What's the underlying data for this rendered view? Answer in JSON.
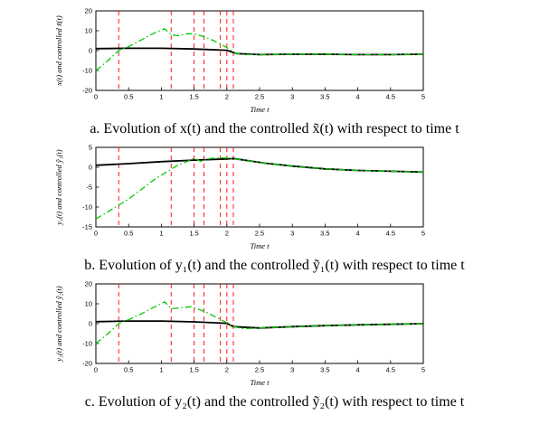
{
  "page": {
    "background": "#ffffff"
  },
  "colors": {
    "original_line": "#000000",
    "controlled_line": "#00cc00",
    "event_lines": "#ff1a1a",
    "axis": "#000000"
  },
  "captions": [
    "a. Evolution of x(t) and the controlled x̃(t) with respect to time t",
    "b. Evolution of y₁(t) and the controlled ỹ₁(t) with respect to time t",
    "c. Evolution of y₂(t) and the controlled ỹ₂(t) with respect to time t"
  ],
  "chart_data": [
    {
      "type": "line",
      "title": "",
      "xlabel": "Time t",
      "ylabel": "x(t) and controlled x̃(t)",
      "xlim": [
        0,
        5
      ],
      "ylim": [
        -20,
        20
      ],
      "xticks": [
        0,
        0.5,
        1,
        1.5,
        2,
        2.5,
        3,
        3.5,
        4,
        4.5,
        5
      ],
      "yticks": [
        -20,
        -10,
        0,
        10,
        20
      ],
      "grid": false,
      "legend": "none",
      "vlines": {
        "x": [
          0.35,
          1.15,
          1.5,
          1.65,
          1.9,
          2.0,
          2.1
        ],
        "color": "#ff1a1a",
        "style": "dashed"
      },
      "series": [
        {
          "key": "x-original",
          "name": "x(t)",
          "color": "#000000",
          "style": "solid",
          "width": 1.8,
          "x": [
            0,
            0.5,
            1.0,
            1.5,
            2.0,
            2.15,
            2.5,
            3.0,
            3.5,
            4.0,
            4.5,
            5.0
          ],
          "y": [
            1.0,
            1.2,
            1.2,
            0.8,
            0.2,
            -1.5,
            -2.0,
            -1.8,
            -1.8,
            -2.0,
            -2.0,
            -1.8
          ]
        },
        {
          "key": "x-controlled",
          "name": "controlled x̃(t)",
          "color": "#00cc00",
          "style": "dashdot",
          "width": 1.3,
          "x": [
            0,
            0.15,
            0.35,
            0.5,
            0.7,
            0.9,
            1.05,
            1.15,
            1.25,
            1.4,
            1.5,
            1.65,
            1.8,
            1.95,
            2.05,
            2.15,
            2.3,
            2.6,
            3.0,
            3.5,
            4.0,
            4.5,
            5.0
          ],
          "y": [
            -10,
            -6,
            0,
            2,
            5.5,
            9,
            11,
            8,
            7.5,
            8.5,
            8.5,
            7,
            5,
            2.5,
            0.5,
            -1.5,
            -2.0,
            -2.0,
            -1.8,
            -1.8,
            -2.0,
            -2.0,
            -1.8
          ]
        }
      ]
    },
    {
      "type": "line",
      "title": "",
      "xlabel": "Time t",
      "ylabel": "y₁(t) and controlled ỹ₁(t)",
      "xlim": [
        0,
        5
      ],
      "ylim": [
        -15,
        5
      ],
      "xticks": [
        0,
        0.5,
        1,
        1.5,
        2,
        2.5,
        3,
        3.5,
        4,
        4.5,
        5
      ],
      "yticks": [
        -15,
        -10,
        -5,
        0,
        5
      ],
      "grid": false,
      "legend": "none",
      "vlines": {
        "x": [
          0.35,
          1.15,
          1.5,
          1.65,
          1.9,
          2.0,
          2.1
        ],
        "color": "#ff1a1a",
        "style": "dashed"
      },
      "series": [
        {
          "key": "y1-original",
          "name": "y1(t)",
          "color": "#000000",
          "style": "solid",
          "width": 1.8,
          "x": [
            0,
            0.5,
            1.0,
            1.5,
            2.0,
            2.1,
            2.6,
            3.0,
            3.5,
            4.0,
            4.5,
            5.0
          ],
          "y": [
            0.5,
            0.9,
            1.4,
            1.8,
            2.1,
            2.2,
            1.0,
            0.3,
            -0.4,
            -0.8,
            -1.0,
            -1.2
          ]
        },
        {
          "key": "y1-controlled",
          "name": "controlled ỹ1(t)",
          "color": "#00cc00",
          "style": "dashdot",
          "width": 1.3,
          "x": [
            0,
            0.2,
            0.35,
            0.5,
            0.7,
            0.9,
            1.1,
            1.25,
            1.4,
            1.5,
            1.6,
            1.75,
            1.9,
            2.0,
            2.1,
            2.3,
            2.6,
            3.0,
            3.5,
            4.0,
            4.5,
            5.0
          ],
          "y": [
            -13,
            -11,
            -9.5,
            -8,
            -5.5,
            -3,
            -1,
            0.5,
            1.5,
            2.3,
            1.5,
            2.2,
            2.4,
            2.3,
            2.2,
            1.7,
            1.0,
            0.3,
            -0.4,
            -0.8,
            -1.0,
            -1.2
          ]
        }
      ]
    },
    {
      "type": "line",
      "title": "",
      "xlabel": "Time t",
      "ylabel": "y₂(t) and controlled ỹ₂(t)",
      "xlim": [
        0,
        5
      ],
      "ylim": [
        -20,
        20
      ],
      "xticks": [
        0,
        0.5,
        1,
        1.5,
        2,
        2.5,
        3,
        3.5,
        4,
        4.5,
        5
      ],
      "yticks": [
        -20,
        -10,
        0,
        10,
        20
      ],
      "grid": false,
      "legend": "none",
      "vlines": {
        "x": [
          0.35,
          1.15,
          1.5,
          1.65,
          1.9,
          2.0,
          2.1
        ],
        "color": "#ff1a1a",
        "style": "dashed"
      },
      "series": [
        {
          "key": "y2-original",
          "name": "y2(t)",
          "color": "#000000",
          "style": "solid",
          "width": 1.8,
          "x": [
            0,
            0.5,
            1.0,
            1.5,
            2.0,
            2.1,
            2.5,
            3.0,
            3.5,
            4.0,
            4.5,
            5.0
          ],
          "y": [
            1.0,
            1.3,
            1.3,
            0.9,
            0.2,
            -1.5,
            -2.2,
            -1.5,
            -1.0,
            -0.6,
            -0.3,
            0.0
          ]
        },
        {
          "key": "y2-controlled",
          "name": "controlled ỹ2(t)",
          "color": "#00cc00",
          "style": "dashdot",
          "width": 1.3,
          "x": [
            0,
            0.15,
            0.35,
            0.5,
            0.7,
            0.9,
            1.05,
            1.15,
            1.3,
            1.45,
            1.55,
            1.7,
            1.85,
            2.0,
            2.1,
            2.25,
            2.5,
            3.0,
            3.5,
            4.0,
            4.5,
            5.0
          ],
          "y": [
            -10,
            -6,
            0,
            2,
            5,
            8.5,
            11,
            7.5,
            8,
            8.5,
            7.5,
            5.5,
            3,
            0.5,
            -1.5,
            -2.5,
            -2.2,
            -1.5,
            -1.0,
            -0.6,
            -0.3,
            0.0
          ]
        }
      ]
    }
  ]
}
